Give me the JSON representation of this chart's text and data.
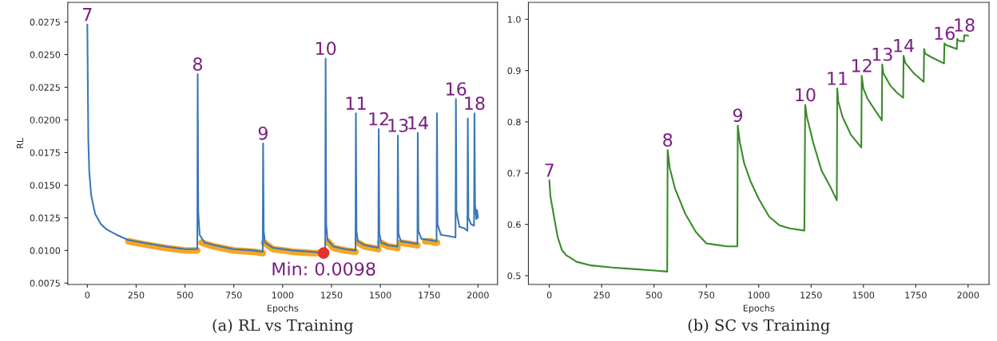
{
  "chart_data": [
    {
      "type": "line",
      "xlabel": "Epochs",
      "ylabel": "RL",
      "xlim": [
        -100,
        2100
      ],
      "ylim": [
        0.0074,
        0.029
      ],
      "xticks": [
        0,
        250,
        500,
        750,
        1000,
        1250,
        1500,
        1750,
        2000
      ],
      "yticks": [
        {
          "value": 0.0075,
          "label": "0.0075"
        },
        {
          "value": 0.01,
          "label": "0.0100"
        },
        {
          "value": 0.0125,
          "label": "0.0125"
        },
        {
          "value": 0.015,
          "label": "0.0150"
        },
        {
          "value": 0.0175,
          "label": "0.0175"
        },
        {
          "value": 0.02,
          "label": "0.0200"
        },
        {
          "value": 0.0225,
          "label": "0.0225"
        },
        {
          "value": 0.025,
          "label": "0.0250"
        },
        {
          "value": 0.0275,
          "label": "0.0275"
        }
      ],
      "grid": false,
      "legend": false,
      "series": [
        {
          "type": "line",
          "color": "#f5a623",
          "x": [
            210,
            300,
            400,
            500,
            563,
            565,
            585,
            650,
            750,
            850,
            898,
            900,
            905,
            950,
            1050,
            1150,
            1218,
            1220,
            1230,
            1260,
            1320,
            1373,
            1375,
            1385,
            1420,
            1490,
            1492,
            1500,
            1540,
            1588,
            1590,
            1605,
            1650,
            1690
          ],
          "values": [
            0.0107,
            0.01045,
            0.0102,
            0.01,
            0.01,
            null,
            0.0106,
            0.0103,
            0.01,
            0.0099,
            0.0098,
            null,
            0.0106,
            0.0101,
            0.0099,
            0.0098,
            0.0098,
            null,
            0.0107,
            0.0102,
            0.01,
            0.0099,
            null,
            0.0106,
            0.0103,
            0.0101,
            null,
            0.0106,
            0.0103,
            0.0102,
            null,
            0.0106,
            0.0105,
            0.0104
          ]
        },
        {
          "type": "line",
          "color": "#f5a623",
          "x": [
            1730,
            1745,
            1760,
            1775,
            1790
          ],
          "values": [
            0.0107,
            0.0107,
            0.0107,
            0.0106,
            0.0106
          ]
        },
        {
          "type": "line",
          "color": "#3a78b8",
          "x": [
            0,
            5,
            10,
            20,
            40,
            70,
            100,
            150,
            210,
            300,
            400,
            500,
            563,
            565,
            568,
            575,
            600,
            650,
            750,
            850,
            898,
            900,
            903,
            910,
            950,
            1050,
            1150,
            1205,
            1218,
            1220,
            1223,
            1230,
            1260,
            1320,
            1373,
            1375,
            1378,
            1385,
            1420,
            1490,
            1492,
            1495,
            1505,
            1540,
            1588,
            1590,
            1593,
            1605,
            1650,
            1690,
            1692,
            1695,
            1710,
            1750,
            1788,
            1790,
            1793,
            1810,
            1850,
            1885,
            1887,
            1890,
            1905,
            1930,
            1946,
            1948,
            1951,
            1965,
            1980,
            1982,
            1985,
            1992,
            1995,
            2000
          ],
          "values": [
            0.0273,
            0.0185,
            0.016,
            0.0142,
            0.0128,
            0.012,
            0.0116,
            0.0112,
            0.0108,
            0.01055,
            0.0103,
            0.0101,
            0.0101,
            0.0235,
            0.013,
            0.0112,
            0.0106,
            0.0104,
            0.0101,
            0.01,
            0.0099,
            0.0182,
            0.0115,
            0.0106,
            0.0102,
            0.01,
            0.0099,
            0.0098,
            0.0098,
            0.0247,
            0.012,
            0.0108,
            0.0103,
            0.0101,
            0.01,
            0.0205,
            0.0115,
            0.0107,
            0.0104,
            0.0102,
            0.0193,
            0.0113,
            0.0106,
            0.0104,
            0.0103,
            0.0188,
            0.0113,
            0.0107,
            0.0106,
            0.0105,
            0.019,
            0.0115,
            0.0109,
            0.0108,
            0.0107,
            0.0205,
            0.012,
            0.0112,
            0.0111,
            0.011,
            0.0216,
            0.013,
            0.0118,
            0.0117,
            0.0115,
            0.0201,
            0.0125,
            0.012,
            0.0119,
            0.0205,
            0.0135,
            0.0124,
            0.0131,
            0.0125
          ]
        },
        {
          "type": "scatter",
          "color": "#e8302a",
          "x": [
            1210
          ],
          "values": [
            0.0098
          ]
        }
      ],
      "annotations": [
        {
          "text": "7",
          "x": 0,
          "y": 0.0273
        },
        {
          "text": "8",
          "x": 565,
          "y": 0.0235
        },
        {
          "text": "9",
          "x": 900,
          "y": 0.0182
        },
        {
          "text": "10",
          "x": 1220,
          "y": 0.0247
        },
        {
          "text": "11",
          "x": 1375,
          "y": 0.0205
        },
        {
          "text": "12",
          "x": 1492,
          "y": 0.0193
        },
        {
          "text": "13",
          "x": 1590,
          "y": 0.0188
        },
        {
          "text": "14",
          "x": 1692,
          "y": 0.019
        },
        {
          "text": "16",
          "x": 1887,
          "y": 0.0216
        },
        {
          "text": "18",
          "x": 1982,
          "y": 0.0205
        },
        {
          "text": "Min: 0.0098",
          "x": 1210,
          "y": 0.0098
        },
        "(a) RL vs Training"
      ]
    },
    {
      "type": "line",
      "xlabel": "Epochs",
      "xlim": [
        -100,
        2100
      ],
      "ylim": [
        0.483,
        1.033
      ],
      "xticks": [
        0,
        250,
        500,
        750,
        1000,
        1250,
        1500,
        1750,
        2000
      ],
      "yticks": [
        0.5,
        0.6,
        0.7,
        0.8,
        0.9,
        {
          "value": 1.0,
          "label": "1.0"
        }
      ],
      "grid": false,
      "legend": false,
      "series": [
        {
          "type": "line",
          "color": "#3a8a2a",
          "x": [
            0,
            5,
            20,
            40,
            60,
            80,
            100,
            130,
            200,
            300,
            400,
            500,
            563,
            565,
            575,
            600,
            650,
            700,
            750,
            800,
            850,
            898,
            900,
            910,
            930,
            960,
            1000,
            1050,
            1100,
            1150,
            1218,
            1222,
            1230,
            1260,
            1300,
            1340,
            1373,
            1375,
            1380,
            1400,
            1440,
            1490,
            1492,
            1500,
            1520,
            1560,
            1588,
            1590,
            1595,
            1630,
            1660,
            1690,
            1692,
            1700,
            1740,
            1788,
            1790,
            1795,
            1830,
            1885,
            1887,
            1895,
            1946,
            1948,
            1955,
            1980,
            1982,
            2000
          ],
          "values": [
            0.686,
            0.655,
            0.62,
            0.575,
            0.55,
            0.54,
            0.535,
            0.527,
            0.52,
            0.516,
            0.513,
            0.51,
            0.508,
            0.745,
            0.71,
            0.67,
            0.62,
            0.585,
            0.563,
            0.56,
            0.557,
            0.557,
            0.793,
            0.76,
            0.72,
            0.685,
            0.65,
            0.615,
            0.598,
            0.592,
            0.588,
            0.833,
            0.81,
            0.76,
            0.705,
            0.675,
            0.647,
            0.865,
            0.84,
            0.81,
            0.775,
            0.75,
            0.89,
            0.865,
            0.845,
            0.82,
            0.803,
            0.912,
            0.895,
            0.87,
            0.857,
            0.847,
            0.929,
            0.915,
            0.895,
            0.878,
            0.942,
            0.933,
            0.925,
            0.914,
            0.953,
            0.95,
            0.942,
            0.962,
            0.958,
            0.957,
            0.969,
            0.968
          ]
        }
      ],
      "annotations": [
        {
          "text": "7",
          "x": 0,
          "y": 0.686
        },
        {
          "text": "8",
          "x": 565,
          "y": 0.745
        },
        {
          "text": "9",
          "x": 900,
          "y": 0.793
        },
        {
          "text": "10",
          "x": 1222,
          "y": 0.833
        },
        {
          "text": "11",
          "x": 1375,
          "y": 0.865
        },
        {
          "text": "12",
          "x": 1492,
          "y": 0.89
        },
        {
          "text": "13",
          "x": 1590,
          "y": 0.912
        },
        {
          "text": "14",
          "x": 1692,
          "y": 0.929
        },
        {
          "text": "16",
          "x": 1887,
          "y": 0.953
        },
        {
          "text": "18",
          "x": 1982,
          "y": 0.969
        },
        "(b) SC vs Training"
      ]
    }
  ]
}
